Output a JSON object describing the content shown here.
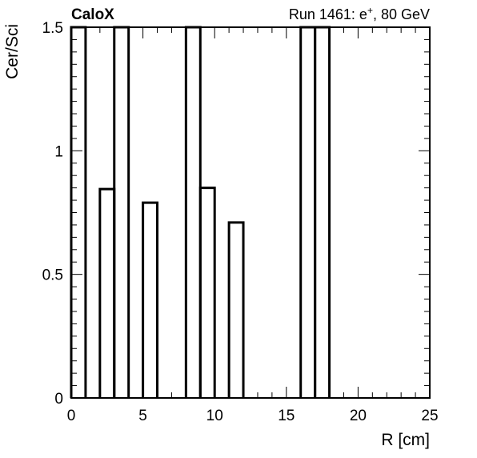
{
  "chart_data": {
    "type": "bar",
    "subtype": "histogram",
    "header_left": "CaloX",
    "header_right_prefix": "Run 1461: e",
    "header_right_sup": "+",
    "header_right_suffix": ", 80 GeV",
    "xlabel": "R [cm]",
    "ylabel": "Cer/Sci",
    "xlim": [
      0,
      25
    ],
    "ylim": [
      0,
      1.5
    ],
    "x_ticks": [
      0,
      5,
      10,
      15,
      20,
      25
    ],
    "x_tick_labels": [
      "0",
      "5",
      "10",
      "15",
      "20",
      "25"
    ],
    "y_ticks": [
      0,
      0.5,
      1,
      1.5
    ],
    "y_tick_labels": [
      "0",
      "0.5",
      "1",
      "1.5"
    ],
    "bin_edges": [
      0,
      1,
      2,
      3,
      4,
      5,
      6,
      7,
      8,
      9,
      10,
      11,
      12,
      13,
      14,
      15,
      16,
      17,
      18,
      19,
      20,
      21,
      22,
      23,
      24,
      25
    ],
    "values": [
      1.5,
      0,
      0.845,
      1.5,
      0,
      0.79,
      0,
      0,
      1.5,
      0.85,
      0,
      0.71,
      0,
      0,
      0,
      0,
      1.5,
      1.5,
      0,
      0,
      0,
      0,
      0,
      0,
      0
    ],
    "line_color": "#000000",
    "grid": false,
    "legend": "none"
  }
}
